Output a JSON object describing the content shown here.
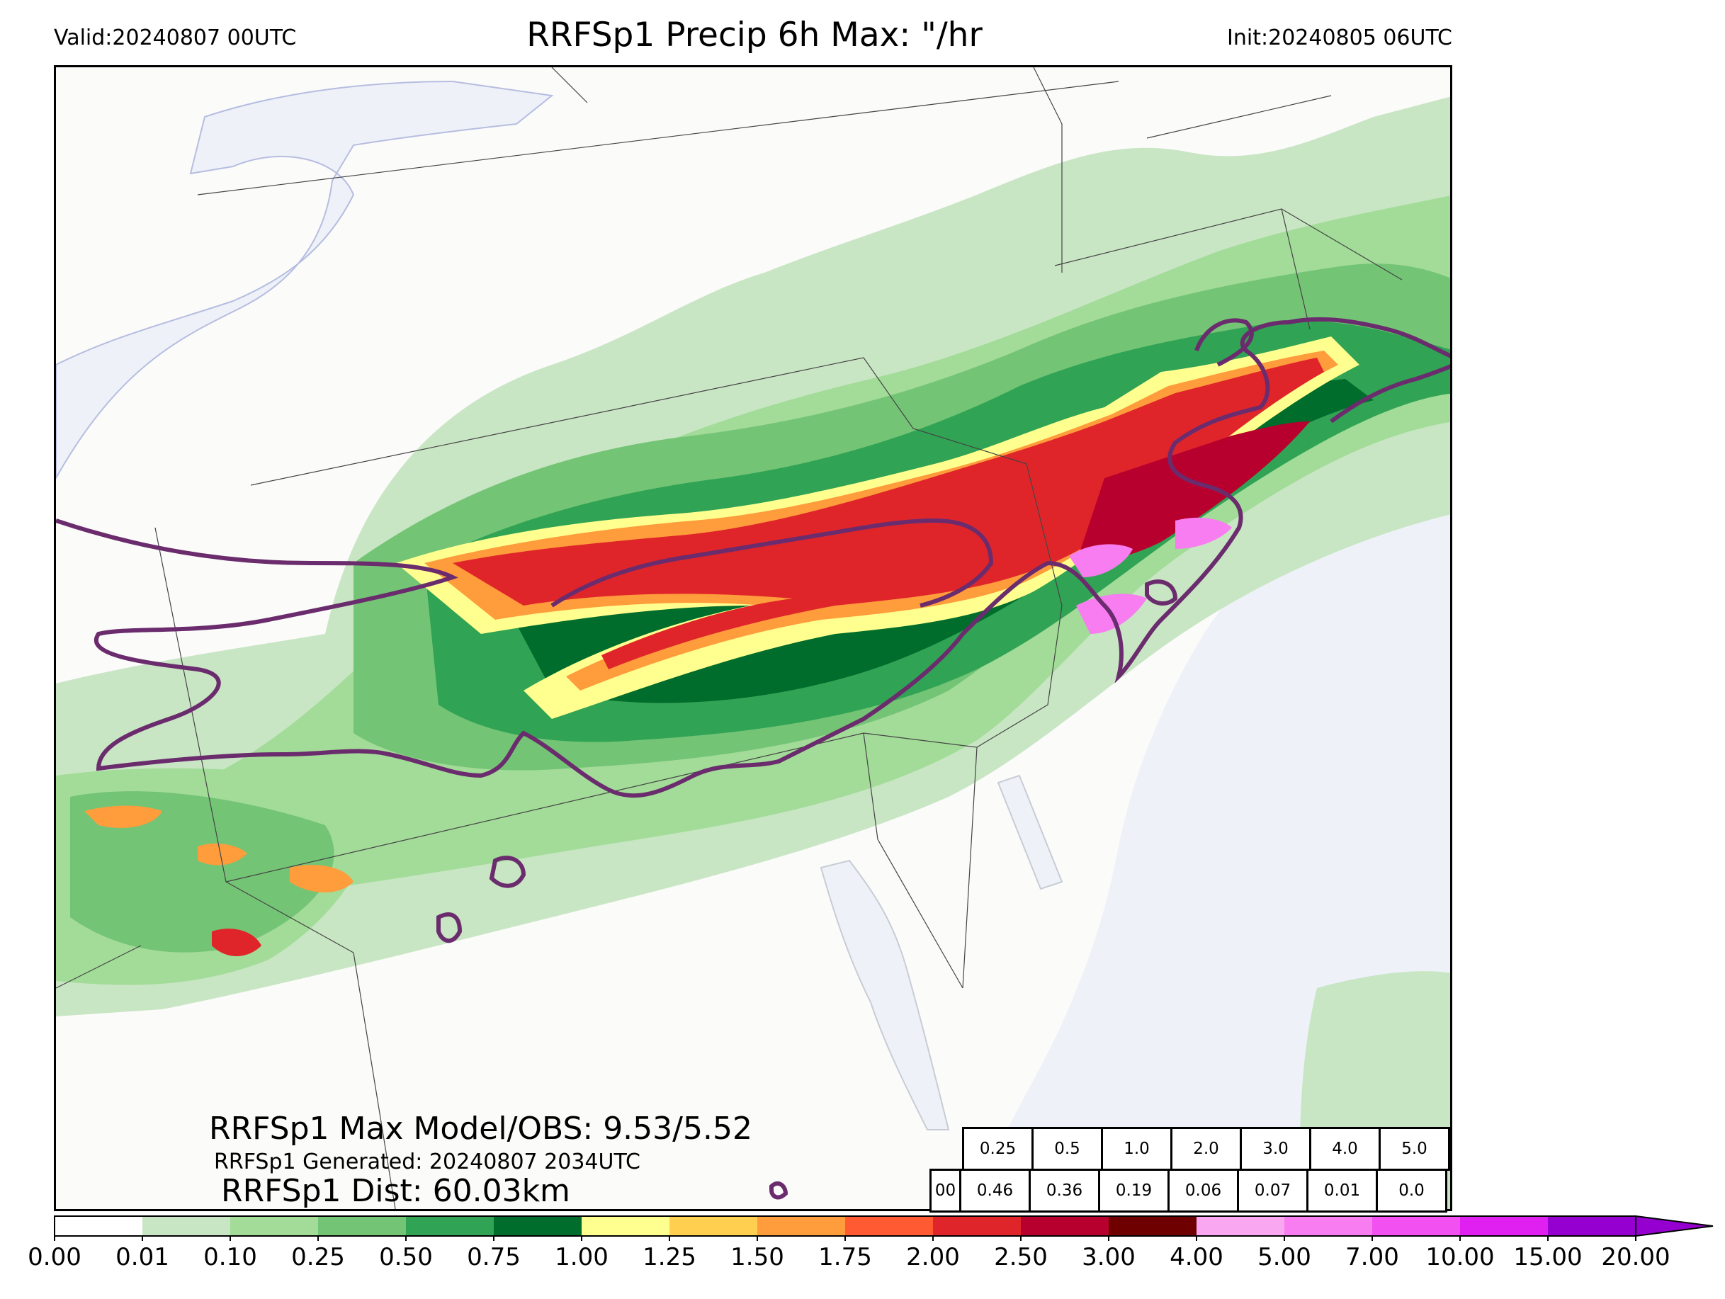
{
  "header": {
    "valid": "Valid:20240807 00UTC",
    "title": "RRFSp1 Precip 6h Max: \"/hr",
    "init": "Init:20240805 06UTC"
  },
  "annotations": {
    "max_model_obs": "RRFSp1 Max Model/OBS: 9.53/5.52",
    "generated": "RRFSp1 Generated: 20240807 2034UTC",
    "dist": "RRFSp1 Dist: 60.03km"
  },
  "stats_table": {
    "thresholds": [
      "0.25",
      "0.5",
      "1.0",
      "2.0",
      "3.0",
      "4.0",
      "5.0"
    ],
    "row_label": "00",
    "values": [
      "0.46",
      "0.36",
      "0.19",
      "0.06",
      "0.07",
      "0.01",
      "0.0"
    ]
  },
  "colorbar": {
    "ticks": [
      "0.00",
      "0.01",
      "0.10",
      "0.25",
      "0.50",
      "0.75",
      "1.00",
      "1.25",
      "1.50",
      "1.75",
      "2.00",
      "2.50",
      "3.00",
      "4.00",
      "5.00",
      "7.00",
      "10.00",
      "15.00",
      "20.00"
    ],
    "colors": [
      "#ffffff",
      "#c9e6c4",
      "#a2dc98",
      "#74c476",
      "#31a354",
      "#006d2c",
      "#ffff8f",
      "#ffd04f",
      "#ff9c3c",
      "#ff5a31",
      "#e0252a",
      "#b8002e",
      "#6e0000",
      "#f9a7f0",
      "#f77df0",
      "#f250f0",
      "#e020f0",
      "#9500d0"
    ]
  },
  "colors": {
    "water": "#eef2f8",
    "lake_edge": "#b6bde0",
    "obs_contour": "#6b2c6e",
    "border": "#444444"
  }
}
